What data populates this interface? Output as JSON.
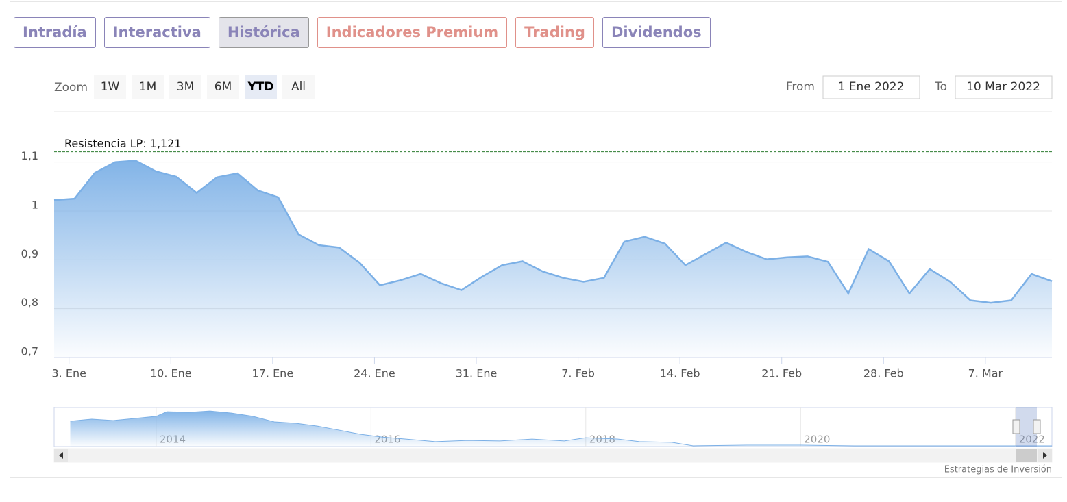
{
  "tabs": [
    {
      "label": "Intradía",
      "color": "#8a84b8"
    },
    {
      "label": "Interactiva",
      "color": "#8a84b8"
    },
    {
      "label": "Histórica",
      "color": "#8a84b8"
    },
    {
      "label": "Indicadores Premium",
      "color": "#e0918a"
    },
    {
      "label": "Trading",
      "color": "#e0918a"
    },
    {
      "label": "Dividendos",
      "color": "#8a84b8"
    }
  ],
  "active_tab": 2,
  "zoom": {
    "label": "Zoom",
    "buttons": [
      "1W",
      "1M",
      "3M",
      "6M",
      "YTD",
      "All"
    ],
    "selected": 4
  },
  "range": {
    "from_label": "From",
    "from": "1 Ene 2022",
    "to_label": "To",
    "to": "10 Mar 2022"
  },
  "chart_data": {
    "type": "area",
    "categories": [
      null,
      "3. Ene",
      null,
      null,
      null,
      null,
      "10. Ene",
      null,
      null,
      null,
      null,
      "17. Ene",
      null,
      null,
      null,
      null,
      "24. Ene",
      null,
      null,
      null,
      null,
      "31. Ene",
      null,
      null,
      null,
      null,
      "7. Feb",
      null,
      null,
      null,
      null,
      "14. Feb",
      null,
      null,
      null,
      null,
      "21. Feb",
      null,
      null,
      null,
      null,
      "28. Feb",
      null,
      null,
      null,
      null,
      "7. Mar",
      null,
      null,
      null
    ],
    "series": [
      {
        "color": "#7cb0e6",
        "values": [
          1.022,
          1.025,
          1.078,
          1.1,
          1.103,
          1.081,
          1.07,
          1.037,
          1.069,
          1.077,
          1.042,
          1.028,
          0.952,
          0.93,
          0.925,
          0.894,
          0.848,
          0.858,
          0.871,
          0.852,
          0.838,
          0.865,
          0.889,
          0.897,
          0.876,
          0.863,
          0.855,
          0.863,
          0.937,
          0.947,
          0.933,
          0.889,
          0.912,
          0.935,
          0.916,
          0.901,
          0.905,
          0.907,
          0.896,
          0.831,
          0.922,
          0.897,
          0.831,
          0.881,
          0.855,
          0.817,
          0.812,
          0.817,
          0.871,
          0.856
        ]
      }
    ],
    "ylim": [
      0.7,
      1.15
    ],
    "yticks": [
      {
        "value": 0.7,
        "label": "0,7"
      },
      {
        "value": 0.8,
        "label": "0,8"
      },
      {
        "value": 0.9,
        "label": "0,9"
      },
      1,
      {
        "value": 1.1,
        "label": "1,1"
      }
    ],
    "grid": true,
    "plot_line": {
      "value": 1.121,
      "label": "Resistencia LP: 1,121",
      "color": "#2e7d32"
    },
    "navigator": {
      "x": [
        2013.2,
        2013.4,
        2013.6,
        2013.8,
        2014.0,
        2014.1,
        2014.3,
        2014.5,
        2014.7,
        2014.9,
        2015.1,
        2015.3,
        2015.5,
        2015.7,
        2015.9,
        2016.1,
        2016.4,
        2016.6,
        2016.9,
        2017.2,
        2017.5,
        2017.8,
        2018.0,
        2018.3,
        2018.5,
        2018.8,
        2019.0,
        2019.5,
        2020.0,
        2020.5,
        2021.0,
        2021.5,
        2022.0,
        2022.34
      ],
      "values": [
        2.21,
        2.33,
        2.25,
        2.37,
        2.49,
        2.76,
        2.72,
        2.8,
        2.68,
        2.49,
        2.17,
        2.09,
        1.93,
        1.7,
        1.46,
        1.3,
        1.14,
        1.03,
        1.1,
        1.07,
        1.18,
        1.07,
        1.26,
        1.18,
        1.03,
        0.99,
        0.79,
        0.83,
        0.83,
        0.79,
        0.79,
        0.79,
        0.79,
        0.79
      ],
      "xlim": [
        2013.05,
        2022.34
      ],
      "ylim": [
        0.75,
        3.0
      ],
      "xticks": [
        2014,
        2016,
        2018,
        2020,
        2022
      ]
    },
    "credits": "Estrategias de Inversión"
  }
}
